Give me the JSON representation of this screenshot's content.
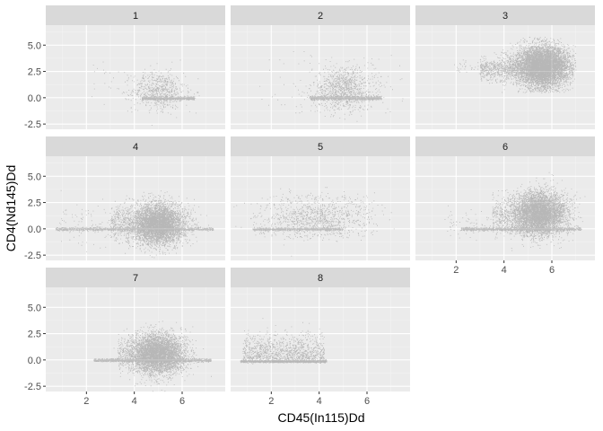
{
  "chart_data": {
    "type": "scatter",
    "layout": "facet_wrap",
    "xlabel": "CD45(In115)Dd",
    "ylabel": "CD4(Nd145)Dd",
    "xlim": [
      0.3,
      7.8
    ],
    "ylim": [
      -3.0,
      6.9
    ],
    "x_ticks": [
      2,
      4,
      6
    ],
    "y_ticks": [
      -2.5,
      0.0,
      2.5,
      5.0
    ],
    "y_tick_labels": [
      "-2.5",
      "0.0",
      "2.5",
      "5.0"
    ],
    "point_color": "#000000",
    "panel_background": "#ebebeb",
    "strip_background": "#d9d9d9",
    "panels": [
      {
        "label": "1",
        "approx_points": 1200,
        "description": "sparse cloud x 3.5-6.5 centered ~5, y up to ~3.5, dense band at y=0 from x 4-6.5"
      },
      {
        "label": "2",
        "approx_points": 1800,
        "description": "cloud x 3-7 centered ~5, y up to ~4, dense band at y=0 from x 3.5-6.5"
      },
      {
        "label": "3",
        "approx_points": 30000,
        "description": "very dense blob x 4-7, y 0.5-5.8, centered x~5.7 y~3, sparse tail to x~2"
      },
      {
        "label": "4",
        "approx_points": 12000,
        "description": "dense mass x 4-6.5 y -1.5 to 3.5, long band at y=0 from x 0.5-7"
      },
      {
        "label": "5",
        "approx_points": 3500,
        "description": "diffuse cloud x 1-6.5 y -1 to 3.5, band at y=0 from x 1-5"
      },
      {
        "label": "6",
        "approx_points": 15000,
        "description": "dense mass x 4-7 centered x~5.5 y~1.5, band at y=0 from x 2-7"
      },
      {
        "label": "7",
        "approx_points": 12000,
        "description": "dense mass x 3.5-6.5 centered x~5 y~0.5, band at y=0 from x 2-7"
      },
      {
        "label": "8",
        "approx_points": 3500,
        "description": "cloud x 0.8-4.2 y 0-3.5, dense band at y=-0.1 from x 0.7-4.3"
      }
    ]
  }
}
